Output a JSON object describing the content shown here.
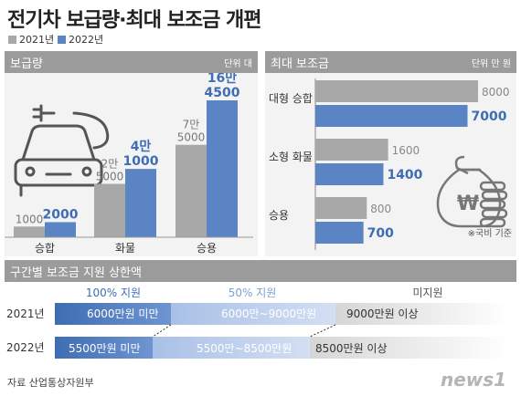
{
  "title": "전기차 보급량·최대 보조금 개편",
  "legend": [
    {
      "label": "2021년",
      "color": "#a8a8a8"
    },
    {
      "label": "2022년",
      "color": "#5b84c4"
    }
  ],
  "chart_data": [
    {
      "type": "bar",
      "title": "보급량",
      "unit": "단위 대",
      "categories": [
        "승합",
        "화물",
        "승용"
      ],
      "series": [
        {
          "name": "2021년",
          "values": [
            1000,
            25000,
            75000
          ],
          "labels": [
            "1000",
            "2만\n5000",
            "7만\n5000"
          ],
          "color": "#a8a8a8"
        },
        {
          "name": "2022년",
          "values": [
            2000,
            41000,
            164500
          ],
          "labels": [
            "2000",
            "4만\n1000",
            "16만\n4500"
          ],
          "color": "#5b84c4"
        }
      ]
    },
    {
      "type": "bar",
      "orientation": "horizontal",
      "title": "최대 보조금",
      "unit": "단위 만 원",
      "categories": [
        "대형 승합",
        "소형 화물",
        "승용"
      ],
      "series": [
        {
          "name": "2021년",
          "values": [
            8000,
            1600,
            800
          ],
          "color": "#a8a8a8"
        },
        {
          "name": "2022년",
          "values": [
            7000,
            1400,
            700
          ],
          "color": "#5b84c4"
        }
      ],
      "note": "※국비 기준"
    }
  ],
  "tiers": {
    "header": "구간별 보조금 지원 상한액",
    "levels": [
      "100% 지원",
      "50% 지원",
      "미지원"
    ],
    "rows": [
      {
        "year": "2021년",
        "full": "6000만원 미만",
        "half": "6000만~9000만원",
        "none": "9000만원 이상"
      },
      {
        "year": "2022년",
        "full": "5500만원 미만",
        "half": "5500만~8500만원",
        "none": "8500만원 이상"
      }
    ]
  },
  "source": "자료 산업통상자원부",
  "logo": "news1"
}
